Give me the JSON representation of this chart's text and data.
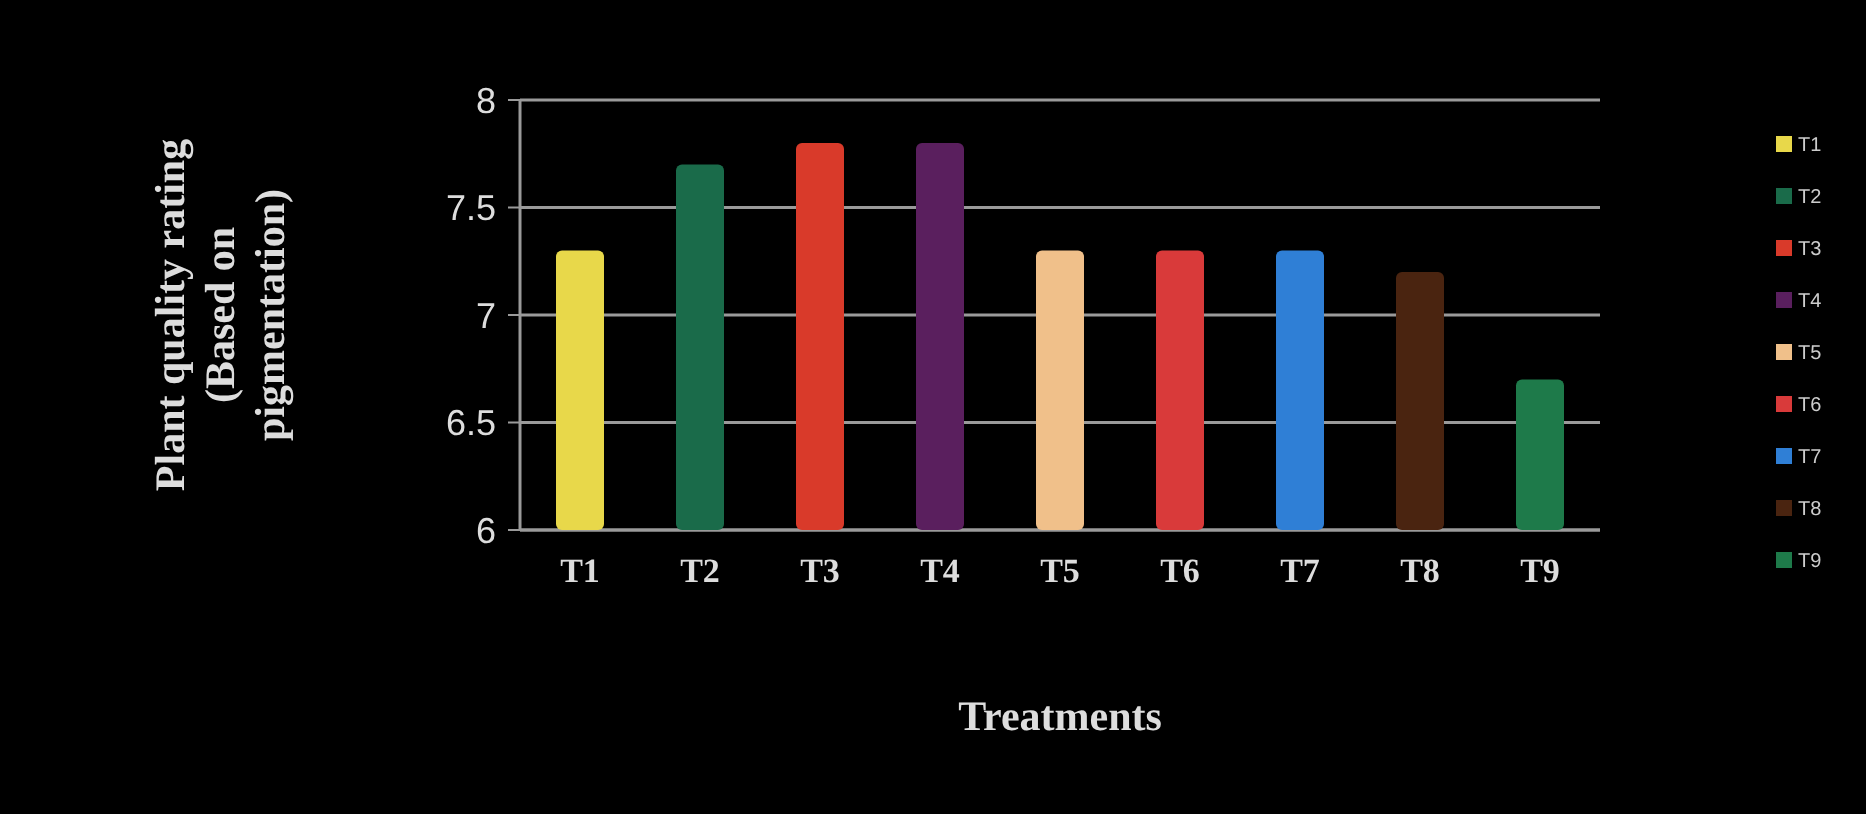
{
  "chart_data": {
    "type": "bar",
    "xlabel": "Treatments",
    "ylabel": "Plant quality rating (Based on pigmentation)",
    "categories": [
      "T1",
      "T2",
      "T3",
      "T4",
      "T5",
      "T6",
      "T7",
      "T8",
      "T9"
    ],
    "series": [
      {
        "name": "T1",
        "color": "#e8d84a",
        "values": [
          7.3,
          null,
          null,
          null,
          null,
          null,
          null,
          null,
          null
        ]
      },
      {
        "name": "T2",
        "color": "#1a6b4a",
        "values": [
          null,
          7.7,
          null,
          null,
          null,
          null,
          null,
          null,
          null
        ]
      },
      {
        "name": "T3",
        "color": "#d93a2a",
        "values": [
          null,
          null,
          7.8,
          null,
          null,
          null,
          null,
          null,
          null
        ]
      },
      {
        "name": "T4",
        "color": "#5a1f5e",
        "values": [
          null,
          null,
          null,
          7.8,
          null,
          null,
          null,
          null,
          null
        ]
      },
      {
        "name": "T5",
        "color": "#f0c08a",
        "values": [
          null,
          null,
          null,
          null,
          7.3,
          null,
          null,
          null,
          null
        ]
      },
      {
        "name": "T6",
        "color": "#d93a3a",
        "values": [
          null,
          null,
          null,
          null,
          null,
          7.3,
          null,
          null,
          null
        ]
      },
      {
        "name": "T7",
        "color": "#2f7fd6",
        "values": [
          null,
          null,
          null,
          null,
          null,
          null,
          7.3,
          null,
          null
        ]
      },
      {
        "name": "T8",
        "color": "#4a2410",
        "values": [
          null,
          null,
          null,
          null,
          null,
          null,
          null,
          7.2,
          null
        ]
      },
      {
        "name": "T9",
        "color": "#1e7a4a",
        "values": [
          null,
          null,
          null,
          null,
          null,
          null,
          null,
          null,
          6.7
        ]
      }
    ],
    "ylim": [
      6,
      8
    ],
    "yticks": [
      6,
      6.5,
      7,
      7.5,
      8
    ],
    "grid": "y",
    "legend": "right"
  }
}
